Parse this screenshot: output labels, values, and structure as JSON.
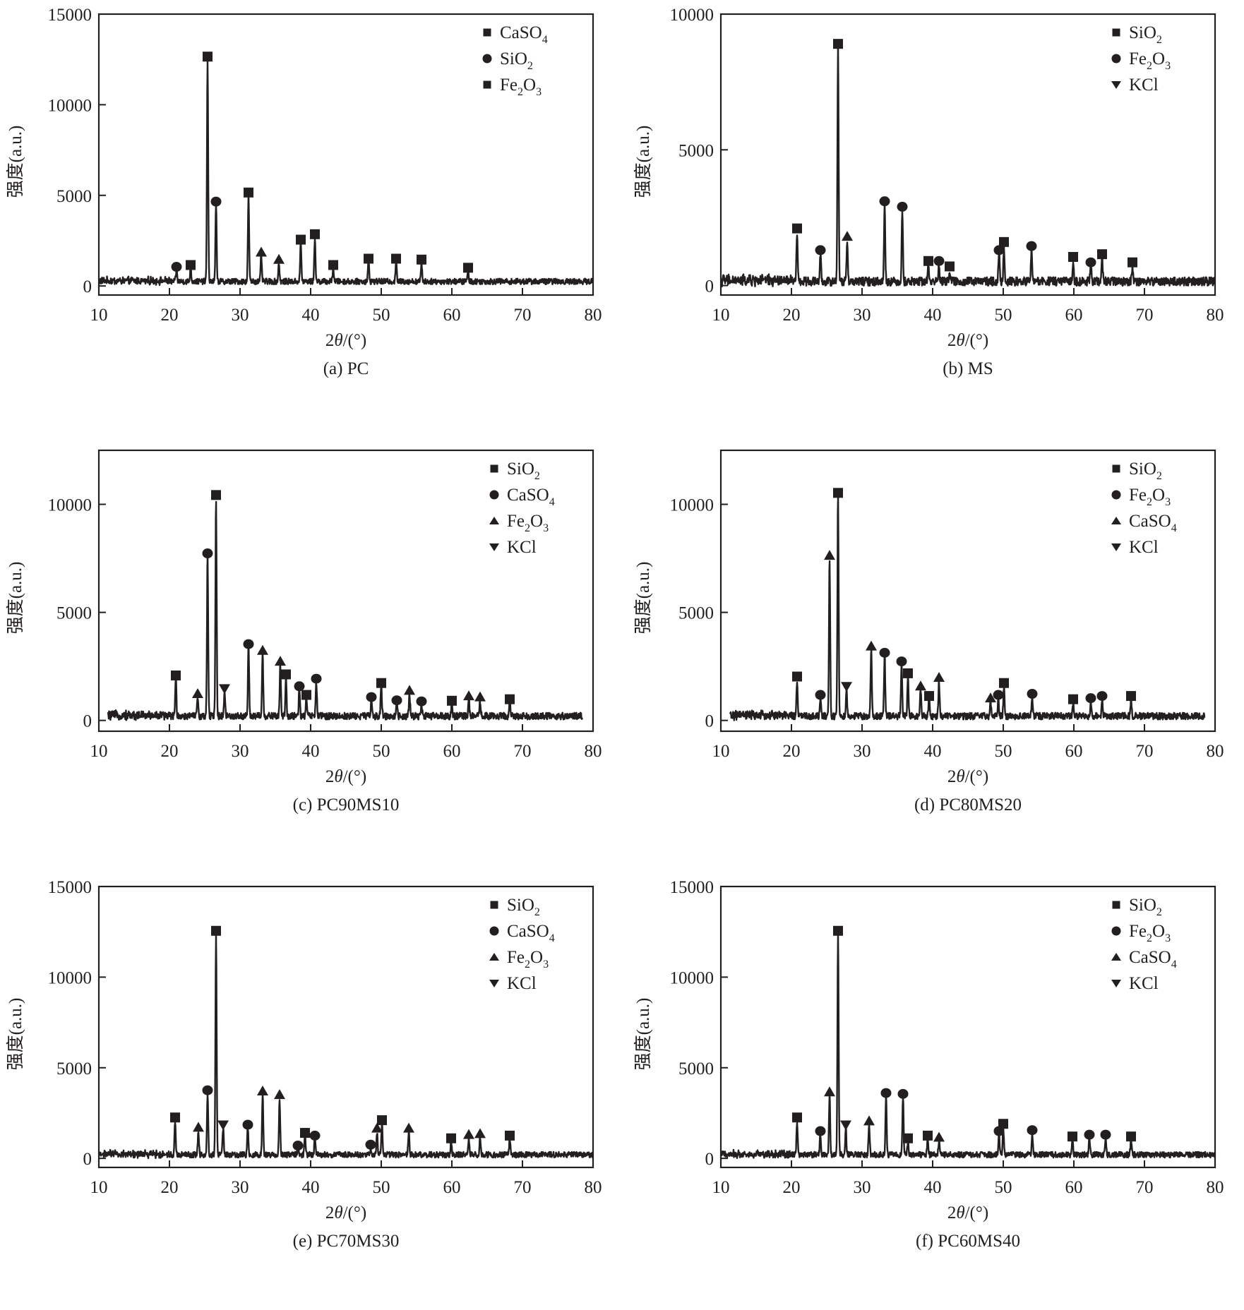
{
  "figure": {
    "x_axis_label": "2θ/(°)",
    "x_axis_label_prefix": "2",
    "x_axis_label_theta": "θ",
    "x_axis_label_suffix": "/(°)",
    "y_axis_label": "强度(a.u.)"
  },
  "chart_data": [
    {
      "id": "a",
      "type": "line",
      "caption": "(a) PC",
      "title": "",
      "xlabel": "2θ/(°)",
      "ylabel": "强度(a.u.)",
      "xlim": [
        10,
        80
      ],
      "ylim": [
        -500,
        15000
      ],
      "xticks": [
        10,
        20,
        30,
        40,
        50,
        60,
        70,
        80
      ],
      "yticks": [
        0,
        5000,
        10000,
        15000
      ],
      "ytick_labels": [
        "0",
        "5000",
        "10000",
        "15000"
      ],
      "grid": false,
      "legend_position": "top-right",
      "legend": [
        {
          "marker": "square",
          "label": "CaSO",
          "sub": "4"
        },
        {
          "marker": "circle",
          "label": "SiO",
          "sub": "2"
        },
        {
          "marker": "square",
          "label": "Fe",
          "sub": "2",
          "label2": "O",
          "sub2": "3"
        }
      ],
      "baseline": 250,
      "peaks": [
        {
          "x": 21.0,
          "y": 900,
          "marker": "circle"
        },
        {
          "x": 23.0,
          "y": 1000,
          "marker": "square"
        },
        {
          "x": 25.4,
          "y": 12500,
          "marker": "square"
        },
        {
          "x": 26.6,
          "y": 4500,
          "marker": "circle"
        },
        {
          "x": 31.2,
          "y": 5000,
          "marker": "square"
        },
        {
          "x": 33.0,
          "y": 1700,
          "marker": "triangle-up"
        },
        {
          "x": 35.5,
          "y": 1300,
          "marker": "triangle-up"
        },
        {
          "x": 38.6,
          "y": 2400,
          "marker": "square"
        },
        {
          "x": 40.6,
          "y": 2700,
          "marker": "square"
        },
        {
          "x": 43.2,
          "y": 1000,
          "marker": "square"
        },
        {
          "x": 48.2,
          "y": 1350,
          "marker": "square"
        },
        {
          "x": 52.1,
          "y": 1350,
          "marker": "square"
        },
        {
          "x": 55.7,
          "y": 1300,
          "marker": "square"
        },
        {
          "x": 62.3,
          "y": 850,
          "marker": "square"
        }
      ]
    },
    {
      "id": "b",
      "type": "line",
      "caption": "(b) MS",
      "title": "",
      "xlabel": "2θ/(°)",
      "ylabel": "强度(a.u.)",
      "xlim": [
        10,
        80
      ],
      "ylim": [
        -350,
        10000
      ],
      "xticks": [
        10,
        20,
        30,
        40,
        50,
        60,
        70,
        80
      ],
      "yticks": [
        0,
        5000,
        10000
      ],
      "ytick_labels": [
        "0",
        "5000",
        "10000"
      ],
      "grid": false,
      "legend_position": "top-right",
      "legend": [
        {
          "marker": "square",
          "label": "SiO",
          "sub": "2"
        },
        {
          "marker": "circle",
          "label": "Fe",
          "sub": "2",
          "label2": "O",
          "sub2": "3"
        },
        {
          "marker": "triangle-down",
          "label": "KCl"
        }
      ],
      "baseline": 150,
      "peaks": [
        {
          "x": 20.8,
          "y": 2000,
          "marker": "square"
        },
        {
          "x": 24.1,
          "y": 1200,
          "marker": "circle"
        },
        {
          "x": 26.6,
          "y": 8800,
          "marker": "square"
        },
        {
          "x": 27.9,
          "y": 1700,
          "marker": "triangle-up"
        },
        {
          "x": 33.2,
          "y": 3000,
          "marker": "circle"
        },
        {
          "x": 35.7,
          "y": 2800,
          "marker": "circle"
        },
        {
          "x": 39.4,
          "y": 800,
          "marker": "square"
        },
        {
          "x": 40.9,
          "y": 800,
          "marker": "circle"
        },
        {
          "x": 42.4,
          "y": 600,
          "marker": "square"
        },
        {
          "x": 49.4,
          "y": 1200,
          "marker": "circle"
        },
        {
          "x": 50.1,
          "y": 1500,
          "marker": "square"
        },
        {
          "x": 54.0,
          "y": 1350,
          "marker": "circle"
        },
        {
          "x": 59.9,
          "y": 950,
          "marker": "square"
        },
        {
          "x": 62.4,
          "y": 750,
          "marker": "circle"
        },
        {
          "x": 64.0,
          "y": 1050,
          "marker": "square"
        },
        {
          "x": 68.3,
          "y": 750,
          "marker": "square"
        }
      ]
    },
    {
      "id": "c",
      "type": "line",
      "caption": "(c) PC90MS10",
      "title": "",
      "xlabel": "2θ/(°)",
      "ylabel": "强度(a.u.)",
      "xlim": [
        10,
        80
      ],
      "ylim": [
        -500,
        12500
      ],
      "xticks": [
        10,
        20,
        30,
        40,
        50,
        60,
        70,
        80
      ],
      "yticks": [
        0,
        5000,
        10000
      ],
      "ytick_labels": [
        "0",
        "5000",
        "10000"
      ],
      "grid": false,
      "legend_position": "top-right",
      "legend": [
        {
          "marker": "square",
          "label": "SiO",
          "sub": "2"
        },
        {
          "marker": "circle",
          "label": "CaSO",
          "sub": "4"
        },
        {
          "marker": "triangle-up",
          "label": "Fe",
          "sub": "2",
          "label2": "O",
          "sub2": "3"
        },
        {
          "marker": "triangle-down",
          "label": "KCl"
        }
      ],
      "x_start": 11.3,
      "x_end": 78.5,
      "baseline": 200,
      "peaks": [
        {
          "x": 20.9,
          "y": 1950,
          "marker": "square"
        },
        {
          "x": 24.0,
          "y": 1100,
          "marker": "triangle-up"
        },
        {
          "x": 25.4,
          "y": 7600,
          "marker": "circle"
        },
        {
          "x": 26.6,
          "y": 10300,
          "marker": "square"
        },
        {
          "x": 27.8,
          "y": 1350,
          "marker": "triangle-down"
        },
        {
          "x": 31.2,
          "y": 3400,
          "marker": "circle"
        },
        {
          "x": 33.2,
          "y": 3100,
          "marker": "triangle-up"
        },
        {
          "x": 35.7,
          "y": 2600,
          "marker": "triangle-up"
        },
        {
          "x": 36.5,
          "y": 2000,
          "marker": "square"
        },
        {
          "x": 38.4,
          "y": 1450,
          "marker": "circle"
        },
        {
          "x": 39.4,
          "y": 1050,
          "marker": "square"
        },
        {
          "x": 40.8,
          "y": 1800,
          "marker": "circle"
        },
        {
          "x": 48.6,
          "y": 950,
          "marker": "circle"
        },
        {
          "x": 50.0,
          "y": 1600,
          "marker": "square"
        },
        {
          "x": 52.2,
          "y": 800,
          "marker": "circle"
        },
        {
          "x": 54.0,
          "y": 1250,
          "marker": "triangle-up"
        },
        {
          "x": 55.7,
          "y": 750,
          "marker": "circle"
        },
        {
          "x": 60.0,
          "y": 780,
          "marker": "square"
        },
        {
          "x": 62.4,
          "y": 1000,
          "marker": "triangle-up"
        },
        {
          "x": 64.0,
          "y": 950,
          "marker": "triangle-up"
        },
        {
          "x": 68.2,
          "y": 850,
          "marker": "square"
        }
      ]
    },
    {
      "id": "d",
      "type": "line",
      "caption": "(d) PC80MS20",
      "title": "",
      "xlabel": "2θ/(°)",
      "ylabel": "强度(a.u.)",
      "xlim": [
        10,
        80
      ],
      "ylim": [
        -500,
        12500
      ],
      "xticks": [
        10,
        20,
        30,
        40,
        50,
        60,
        70,
        80
      ],
      "yticks": [
        0,
        5000,
        10000
      ],
      "ytick_labels": [
        "0",
        "5000",
        "10000"
      ],
      "grid": false,
      "legend_position": "top-right",
      "legend": [
        {
          "marker": "square",
          "label": "SiO",
          "sub": "2"
        },
        {
          "marker": "circle",
          "label": "Fe",
          "sub": "2",
          "label2": "O",
          "sub2": "3"
        },
        {
          "marker": "triangle-up",
          "label": "CaSO",
          "sub": "4"
        },
        {
          "marker": "triangle-down",
          "label": "KCl"
        }
      ],
      "x_start": 11.3,
      "x_end": 78.5,
      "baseline": 200,
      "peaks": [
        {
          "x": 20.8,
          "y": 1900,
          "marker": "square"
        },
        {
          "x": 24.1,
          "y": 1050,
          "marker": "circle"
        },
        {
          "x": 25.4,
          "y": 7500,
          "marker": "triangle-up"
        },
        {
          "x": 26.6,
          "y": 10400,
          "marker": "square"
        },
        {
          "x": 27.8,
          "y": 1450,
          "marker": "triangle-down"
        },
        {
          "x": 31.3,
          "y": 3300,
          "marker": "triangle-up"
        },
        {
          "x": 33.2,
          "y": 3000,
          "marker": "circle"
        },
        {
          "x": 35.6,
          "y": 2600,
          "marker": "circle"
        },
        {
          "x": 36.5,
          "y": 2050,
          "marker": "square"
        },
        {
          "x": 38.3,
          "y": 1450,
          "marker": "triangle-up"
        },
        {
          "x": 39.5,
          "y": 1000,
          "marker": "square"
        },
        {
          "x": 40.9,
          "y": 1850,
          "marker": "triangle-up"
        },
        {
          "x": 48.2,
          "y": 900,
          "marker": "triangle-up"
        },
        {
          "x": 49.3,
          "y": 1050,
          "marker": "circle"
        },
        {
          "x": 50.1,
          "y": 1600,
          "marker": "square"
        },
        {
          "x": 54.1,
          "y": 1100,
          "marker": "circle"
        },
        {
          "x": 59.9,
          "y": 850,
          "marker": "square"
        },
        {
          "x": 62.4,
          "y": 900,
          "marker": "circle"
        },
        {
          "x": 64.0,
          "y": 1000,
          "marker": "circle"
        },
        {
          "x": 68.1,
          "y": 1000,
          "marker": "square"
        }
      ]
    },
    {
      "id": "e",
      "type": "line",
      "caption": "(e) PC70MS30",
      "title": "",
      "xlabel": "2θ/(°)",
      "ylabel": "强度(a.u.)",
      "xlim": [
        10,
        80
      ],
      "ylim": [
        -500,
        15000
      ],
      "xticks": [
        10,
        20,
        30,
        40,
        50,
        60,
        70,
        80
      ],
      "yticks": [
        0,
        5000,
        10000,
        15000
      ],
      "ytick_labels": [
        "0",
        "5000",
        "10000",
        "15000"
      ],
      "grid": false,
      "legend_position": "top-right",
      "legend": [
        {
          "marker": "square",
          "label": "SiO",
          "sub": "2"
        },
        {
          "marker": "circle",
          "label": "CaSO",
          "sub": "4"
        },
        {
          "marker": "triangle-up",
          "label": "Fe",
          "sub": "2",
          "label2": "O",
          "sub2": "3"
        },
        {
          "marker": "triangle-down",
          "label": "KCl"
        }
      ],
      "baseline": 200,
      "peaks": [
        {
          "x": 20.8,
          "y": 2100,
          "marker": "square"
        },
        {
          "x": 24.1,
          "y": 1550,
          "marker": "triangle-up"
        },
        {
          "x": 25.4,
          "y": 3600,
          "marker": "circle"
        },
        {
          "x": 26.6,
          "y": 12400,
          "marker": "square"
        },
        {
          "x": 27.6,
          "y": 1700,
          "marker": "triangle-down"
        },
        {
          "x": 31.1,
          "y": 1700,
          "marker": "circle"
        },
        {
          "x": 33.2,
          "y": 3550,
          "marker": "triangle-up"
        },
        {
          "x": 35.6,
          "y": 3350,
          "marker": "triangle-up"
        },
        {
          "x": 39.2,
          "y": 1250,
          "marker": "square"
        },
        {
          "x": 40.6,
          "y": 1100,
          "marker": "circle"
        },
        {
          "x": 38.2,
          "y": 550,
          "marker": "circle"
        },
        {
          "x": 48.5,
          "y": 600,
          "marker": "circle"
        },
        {
          "x": 49.4,
          "y": 1500,
          "marker": "triangle-up"
        },
        {
          "x": 50.1,
          "y": 1950,
          "marker": "square"
        },
        {
          "x": 53.9,
          "y": 1500,
          "marker": "triangle-up"
        },
        {
          "x": 59.9,
          "y": 950,
          "marker": "square"
        },
        {
          "x": 62.4,
          "y": 1150,
          "marker": "triangle-up"
        },
        {
          "x": 64.0,
          "y": 1200,
          "marker": "triangle-up"
        },
        {
          "x": 68.2,
          "y": 1100,
          "marker": "square"
        }
      ]
    },
    {
      "id": "f",
      "type": "line",
      "caption": "(f) PC60MS40",
      "title": "",
      "xlabel": "2θ/(°)",
      "ylabel": "强度(a.u.)",
      "xlim": [
        10,
        80
      ],
      "ylim": [
        -500,
        15000
      ],
      "xticks": [
        10,
        20,
        30,
        40,
        50,
        60,
        70,
        80
      ],
      "yticks": [
        0,
        5000,
        10000,
        15000
      ],
      "ytick_labels": [
        "0",
        "5000",
        "10000",
        "15000"
      ],
      "grid": false,
      "legend_position": "top-right",
      "legend": [
        {
          "marker": "square",
          "label": "SiO",
          "sub": "2"
        },
        {
          "marker": "circle",
          "label": "Fe",
          "sub": "2",
          "label2": "O",
          "sub2": "3"
        },
        {
          "marker": "triangle-up",
          "label": "CaSO",
          "sub": "4"
        },
        {
          "marker": "triangle-down",
          "label": "KCl"
        }
      ],
      "baseline": 200,
      "peaks": [
        {
          "x": 20.8,
          "y": 2100,
          "marker": "square"
        },
        {
          "x": 24.1,
          "y": 1350,
          "marker": "circle"
        },
        {
          "x": 25.4,
          "y": 3500,
          "marker": "triangle-up"
        },
        {
          "x": 26.6,
          "y": 12400,
          "marker": "square"
        },
        {
          "x": 27.7,
          "y": 1700,
          "marker": "triangle-down"
        },
        {
          "x": 31.0,
          "y": 1900,
          "marker": "triangle-up"
        },
        {
          "x": 33.4,
          "y": 3450,
          "marker": "circle"
        },
        {
          "x": 35.8,
          "y": 3400,
          "marker": "circle"
        },
        {
          "x": 36.5,
          "y": 950,
          "marker": "square"
        },
        {
          "x": 39.3,
          "y": 1100,
          "marker": "square"
        },
        {
          "x": 40.9,
          "y": 1000,
          "marker": "triangle-up"
        },
        {
          "x": 49.4,
          "y": 1350,
          "marker": "circle"
        },
        {
          "x": 50.0,
          "y": 1750,
          "marker": "square"
        },
        {
          "x": 54.1,
          "y": 1400,
          "marker": "circle"
        },
        {
          "x": 59.8,
          "y": 1050,
          "marker": "square"
        },
        {
          "x": 62.2,
          "y": 1150,
          "marker": "circle"
        },
        {
          "x": 64.5,
          "y": 1150,
          "marker": "circle"
        },
        {
          "x": 68.1,
          "y": 1050,
          "marker": "square"
        }
      ]
    }
  ]
}
